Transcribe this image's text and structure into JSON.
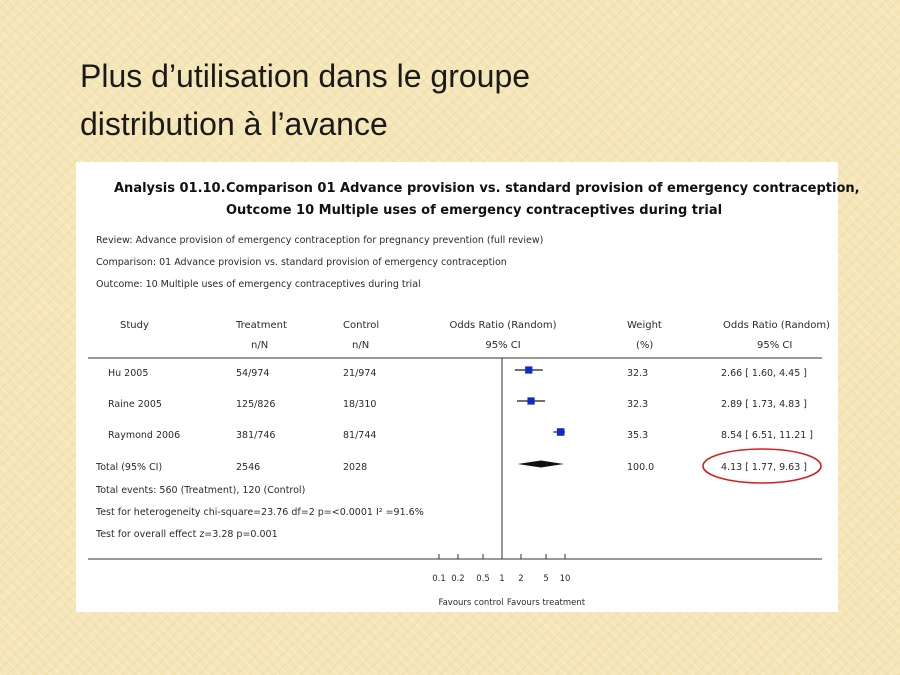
{
  "slide": {
    "title_line1": "Plus d’utilisation dans le groupe",
    "title_line2": "distribution à l’avance"
  },
  "analysis": {
    "heading_label": "Analysis 01.10.",
    "heading_line1": "Comparison 01 Advance provision vs. standard provision of emergency contraception,",
    "heading_line2": "Outcome 10 Multiple uses of emergency contraceptives during trial",
    "review": "Review:   Advance provision of emergency contraception for pregnancy prevention (full review)",
    "comparison": "Comparison:   01 Advance provision vs. standard provision of emergency contraception",
    "outcome": "Outcome:   10 Multiple uses of emergency contraceptives during trial"
  },
  "table": {
    "col_study": "Study",
    "col_treatment": "Treatment",
    "col_treatment_sub": "n/N",
    "col_control": "Control",
    "col_control_sub": "n/N",
    "col_or": "Odds Ratio (Random)",
    "col_or_sub": "95% CI",
    "col_weight": "Weight",
    "col_weight_sub": "(%)",
    "col_or2": "Odds Ratio (Random)",
    "col_or2_sub": "95% CI",
    "rows": [
      {
        "study": "Hu 2005",
        "treatment": "54/974",
        "control": "21/974",
        "weight": "32.3",
        "ci_text": "2.66 [ 1.60, 4.45 ]"
      },
      {
        "study": "Raine 2005",
        "treatment": "125/826",
        "control": "18/310",
        "weight": "32.3",
        "ci_text": "2.89 [ 1.73, 4.83 ]"
      },
      {
        "study": "Raymond 2006",
        "treatment": "381/746",
        "control": "81/744",
        "weight": "35.3",
        "ci_text": "8.54 [ 6.51, 11.21 ]"
      }
    ],
    "total": {
      "study": "Total (95% CI)",
      "treatment": "2546",
      "control": "2028",
      "weight": "100.0",
      "ci_text": "4.13 [ 1.77, 9.63 ]"
    },
    "total_events": "Total events: 560 (Treatment), 120 (Control)",
    "heterogeneity": "Test for heterogeneity chi-square=23.76 df=2 p=<0.0001 I² =91.6%",
    "overall_effect": "Test for overall effect z=3.28   p=0.001"
  },
  "axis": {
    "ticks": [
      "0.1",
      "0.2",
      "0.5",
      "1",
      "2",
      "5",
      "10"
    ],
    "favours_left": "Favours control",
    "favours_right": "Favours treatment"
  },
  "chart_data": {
    "type": "forest",
    "scale": "log",
    "xlim": [
      0.1,
      10
    ],
    "reference_line": 1,
    "x_ticks": [
      0.1,
      0.2,
      0.5,
      1,
      2,
      5,
      10
    ],
    "studies": [
      {
        "name": "Hu 2005",
        "or": 2.66,
        "lower": 1.6,
        "upper": 4.45,
        "weight": 32.3
      },
      {
        "name": "Raine 2005",
        "or": 2.89,
        "lower": 1.73,
        "upper": 4.83,
        "weight": 32.3
      },
      {
        "name": "Raymond 2006",
        "or": 8.54,
        "lower": 6.51,
        "upper": 11.21,
        "weight": 35.3
      }
    ],
    "pooled": {
      "name": "Total (95% CI)",
      "or": 4.13,
      "lower": 1.77,
      "upper": 9.63
    },
    "highlight_color": "#d42020",
    "marker_color": "#1428c8"
  }
}
